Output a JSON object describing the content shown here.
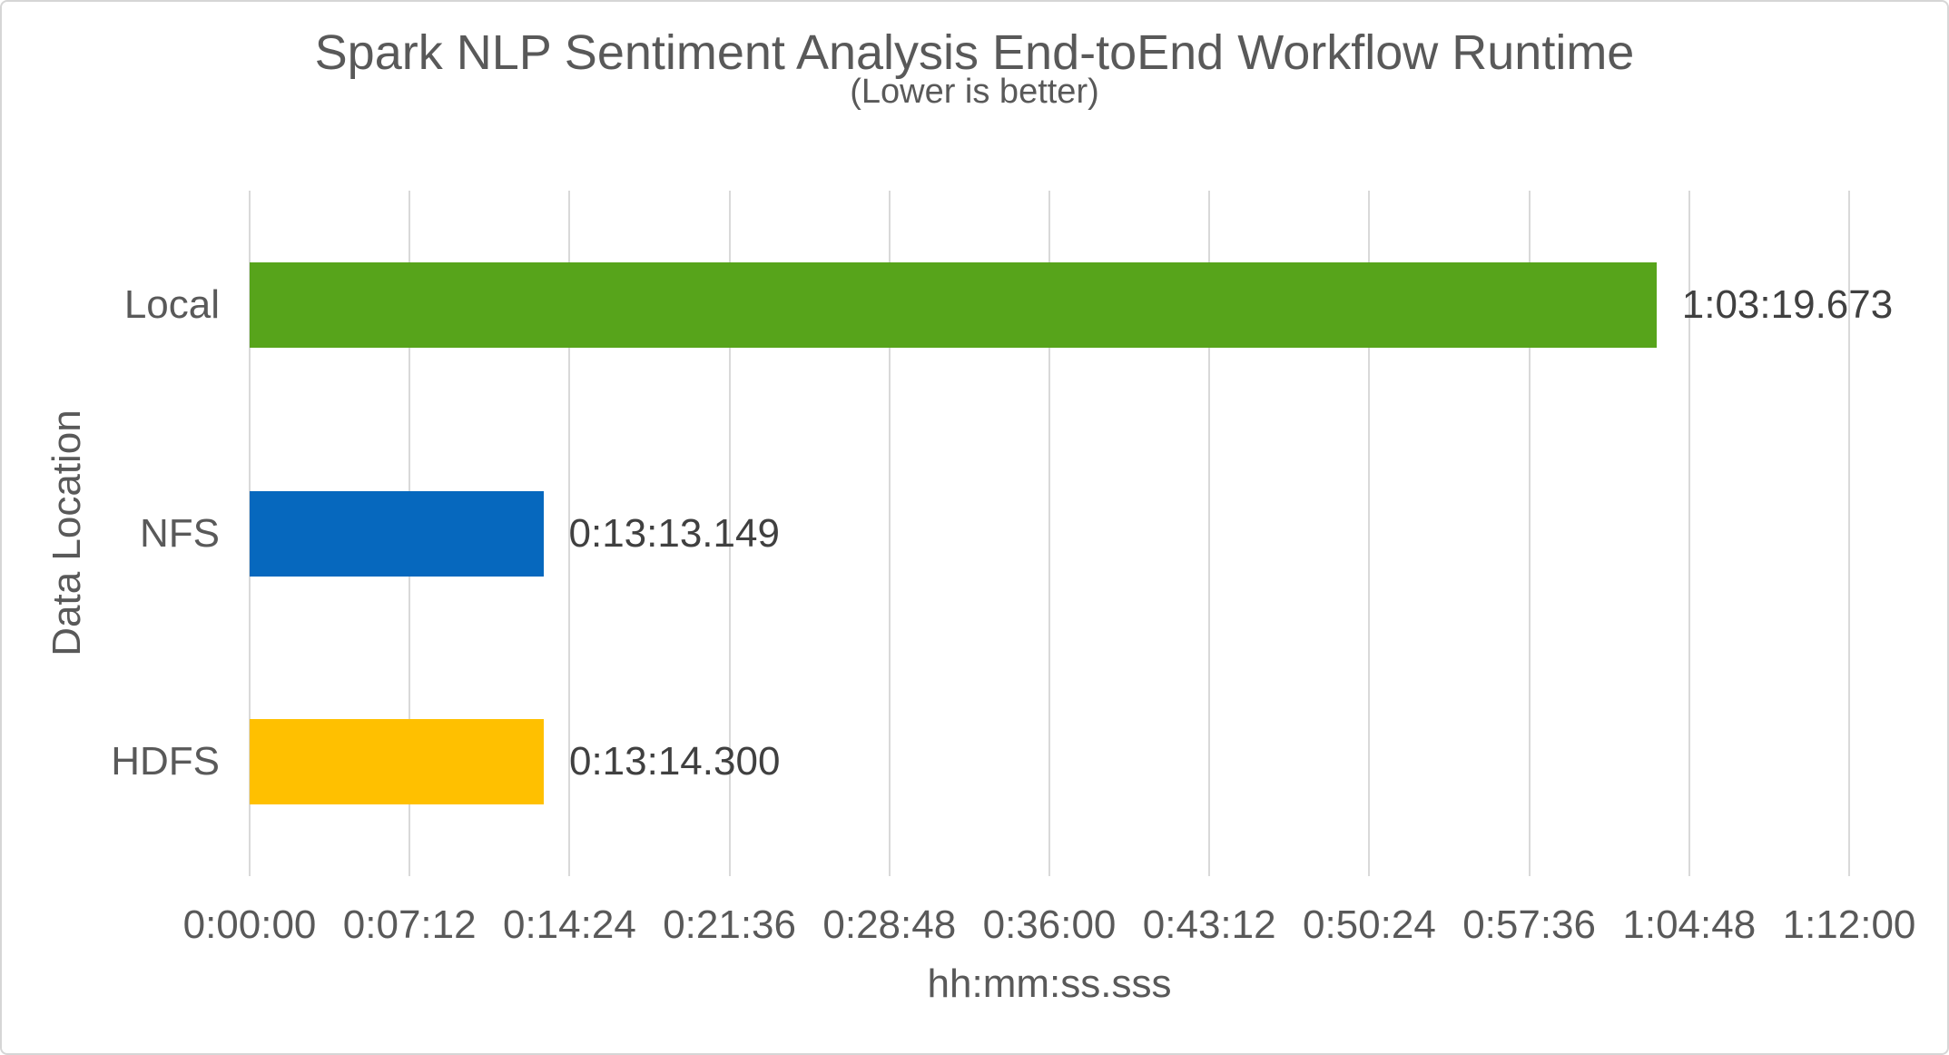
{
  "chart_data": {
    "type": "bar",
    "orientation": "horizontal",
    "title": "Spark NLP Sentiment Analysis End-toEnd Workflow Runtime",
    "subtitle": "(Lower is better)",
    "xlabel": "hh:mm:ss.sss",
    "ylabel": "Data Location",
    "categories": [
      "Local",
      "NFS",
      "HDFS"
    ],
    "values_label": [
      "1:03:19.673",
      "0:13:13.149",
      "0:13:14.300"
    ],
    "values_seconds": [
      3799.673,
      793.149,
      794.3
    ],
    "bar_colors": [
      "#57A41B",
      "#0668BE",
      "#FFC000"
    ],
    "x_ticks": [
      "0:00:00",
      "0:07:12",
      "0:14:24",
      "0:21:36",
      "0:28:48",
      "0:36:00",
      "0:43:12",
      "0:50:24",
      "0:57:36",
      "1:04:48",
      "1:12:00"
    ],
    "xlim_seconds": [
      0,
      4320
    ],
    "legend": "none",
    "grid": "vertical-only"
  },
  "colors": {
    "text": "#595959",
    "data_label": "#404040",
    "gridline": "#d9d9d9",
    "background": "#ffffff",
    "border": "#d6d6d6"
  }
}
